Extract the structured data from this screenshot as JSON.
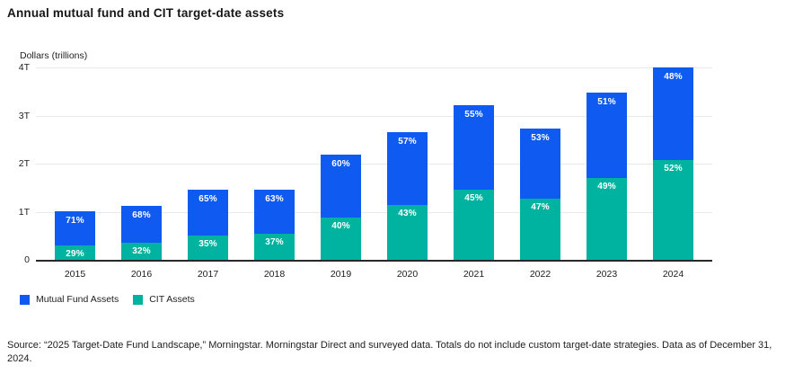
{
  "title": "Annual mutual fund and CIT target-date assets",
  "source": "Source: “2025 Target-Date Fund Landscape,” Morningstar. Morningstar Direct and surveyed data. Totals do not include custom target-date strategies. Data as of December 31, 2024.",
  "colors": {
    "mutual_fund": "#0f5af0",
    "cit": "#00b3a0",
    "axis": "#26282a",
    "gridline": "#e9e9e9",
    "text": "#1e1e1e"
  },
  "legend": {
    "items": [
      {
        "label": "Mutual Fund Assets",
        "color_key": "mutual_fund"
      },
      {
        "label": "CIT Assets",
        "color_key": "cit"
      }
    ]
  },
  "chart_data": {
    "type": "bar",
    "stacked": true,
    "title": "Annual mutual fund and CIT target-date assets",
    "y_axis_unit": "Dollars (trillions)",
    "ylim": [
      0,
      4
    ],
    "y_ticks": [
      "0",
      "1T",
      "2T",
      "3T",
      "4T"
    ],
    "grid": "horizontal",
    "legend_position": "bottom-left",
    "categories": [
      "2015",
      "2016",
      "2017",
      "2018",
      "2019",
      "2020",
      "2021",
      "2022",
      "2023",
      "2024"
    ],
    "totals_trillions": [
      1.0,
      1.12,
      1.45,
      1.45,
      2.18,
      2.65,
      3.22,
      2.72,
      3.48,
      4.0
    ],
    "series": [
      {
        "name": "Mutual Fund Assets",
        "color_key": "mutual_fund",
        "share_pct": [
          71,
          68,
          65,
          63,
          60,
          57,
          55,
          53,
          51,
          48
        ],
        "values_trillions": [
          0.71,
          0.76,
          0.94,
          0.91,
          1.31,
          1.51,
          1.77,
          1.44,
          1.77,
          1.92
        ]
      },
      {
        "name": "CIT Assets",
        "color_key": "cit",
        "share_pct": [
          29,
          32,
          35,
          37,
          40,
          43,
          45,
          47,
          49,
          52
        ],
        "values_trillions": [
          0.29,
          0.36,
          0.51,
          0.54,
          0.87,
          1.14,
          1.45,
          1.28,
          1.71,
          2.08
        ]
      }
    ]
  }
}
